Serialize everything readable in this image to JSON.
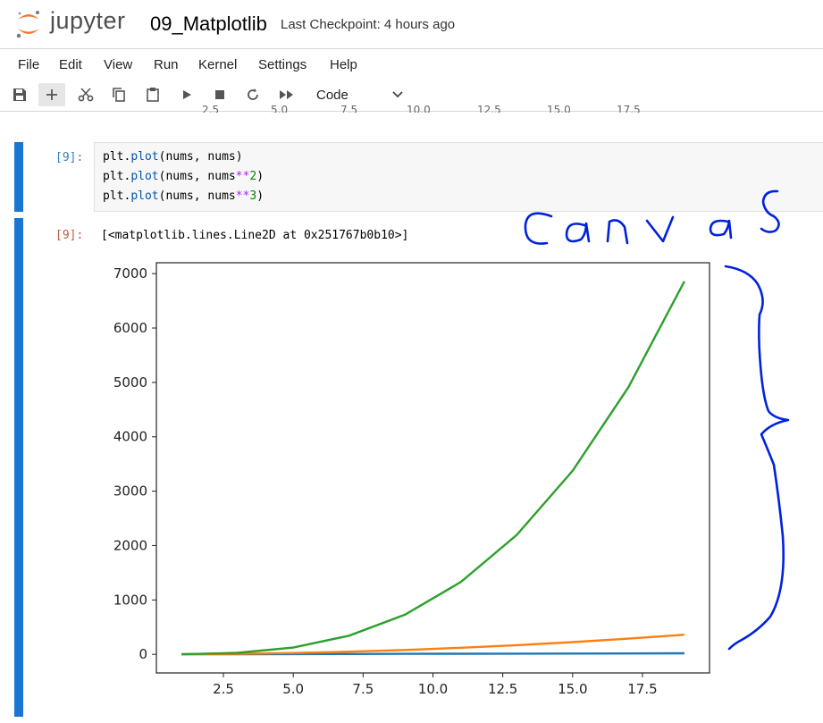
{
  "header": {
    "logo_text": "jupyter",
    "notebook_title": "09_Matplotlib",
    "checkpoint": "Last Checkpoint: 4 hours ago"
  },
  "menu": [
    "File",
    "Edit",
    "View",
    "Run",
    "Kernel",
    "Settings",
    "Help"
  ],
  "toolbar": {
    "cell_type": "Code",
    "icons": [
      "save-icon",
      "add-cell-icon",
      "cut-icon",
      "copy-icon",
      "paste-icon",
      "run-icon",
      "stop-icon",
      "restart-icon",
      "run-all-icon",
      "chevron-down-icon"
    ]
  },
  "scrolled_ticks": [
    "2.5",
    "5.0",
    "7.5",
    "10.0",
    "12.5",
    "15.0",
    "17.5"
  ],
  "cell": {
    "in_prompt": "[9]:",
    "out_prompt": "[9]:",
    "code_lines": [
      [
        {
          "t": "plt."
        },
        {
          "t": "plot",
          "c": "fn"
        },
        {
          "t": "(nums, nums)"
        }
      ],
      [
        {
          "t": "plt."
        },
        {
          "t": "plot",
          "c": "fn"
        },
        {
          "t": "(nums, nums"
        },
        {
          "t": "**",
          "c": "op"
        },
        {
          "t": "2",
          "c": "num"
        },
        {
          "t": ")"
        }
      ],
      [
        {
          "t": "plt."
        },
        {
          "t": "plot",
          "c": "fn"
        },
        {
          "t": "(nums, nums"
        },
        {
          "t": "**",
          "c": "op"
        },
        {
          "t": "3",
          "c": "num"
        },
        {
          "t": ")"
        }
      ]
    ],
    "output_text": "[<matplotlib.lines.Line2D at 0x251767b0b10>]"
  },
  "colors": {
    "accent_bar": "#1976d2",
    "annotation_ink": "#0022dd",
    "series1": "#1f77b4",
    "series2": "#ff7f0e",
    "series3": "#2ca02c"
  },
  "annotation": {
    "text": "canvas"
  },
  "chart_data": {
    "type": "line",
    "x": [
      1,
      3,
      5,
      7,
      9,
      11,
      13,
      15,
      17,
      19
    ],
    "series": [
      {
        "values": [
          1,
          3,
          5,
          7,
          9,
          11,
          13,
          15,
          17,
          19
        ],
        "color": "#1f77b4"
      },
      {
        "values": [
          1,
          9,
          25,
          49,
          81,
          121,
          169,
          225,
          289,
          361
        ],
        "color": "#ff7f0e"
      },
      {
        "values": [
          1,
          27,
          125,
          343,
          729,
          1331,
          2197,
          3375,
          4913,
          6859
        ],
        "color": "#2ca02c"
      }
    ],
    "x_ticks": [
      2.5,
      5.0,
      7.5,
      10.0,
      12.5,
      15.0,
      17.5
    ],
    "y_ticks": [
      0,
      1000,
      2000,
      3000,
      4000,
      5000,
      6000,
      7000
    ],
    "xlim": [
      0.1,
      19.9
    ],
    "ylim": [
      -342,
      7200
    ],
    "grid": false
  }
}
